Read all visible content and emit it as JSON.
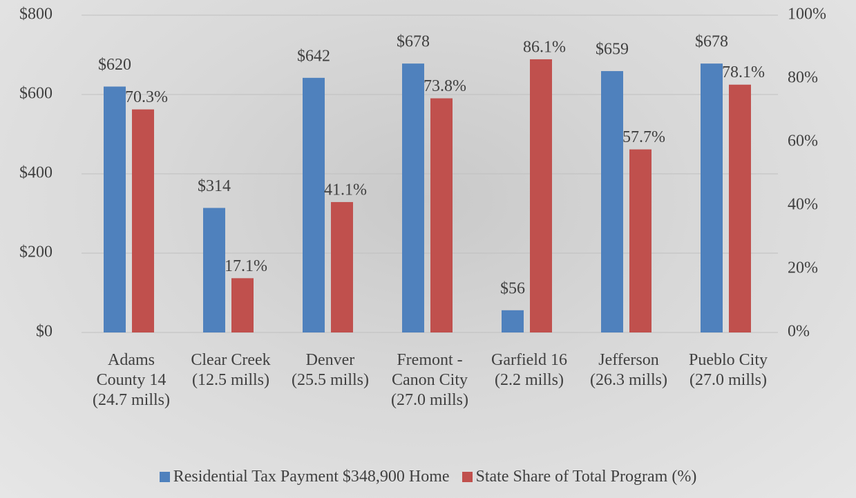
{
  "chart_data": {
    "type": "bar",
    "categories": [
      "Adams County 14 (24.7 mills)",
      "Clear Creek (12.5 mills)",
      "Denver (25.5 mills)",
      "Fremont - Canon City (27.0 mills)",
      "Garfield 16 (2.2 mills)",
      "Jefferson (26.3 mills)",
      "Pueblo City (27.0 mills)"
    ],
    "series": [
      {
        "name": "Residential Tax Payment $348,900 Home",
        "color": "#4f81bd",
        "values": [
          620,
          314,
          642,
          678,
          56,
          659,
          678
        ],
        "value_labels": [
          "$620",
          "$314",
          "$642",
          "$678",
          "$56",
          "$659",
          "$678"
        ]
      },
      {
        "name": "State Share of Total Program (%)",
        "color": "#c0504d",
        "axis": "y2",
        "values": [
          70.3,
          17.1,
          41.1,
          73.8,
          86.1,
          57.7,
          78.1
        ],
        "value_labels": [
          "70.3%",
          "17.1%",
          "41.1%",
          "73.8%",
          "86.1%",
          "57.7%",
          "78.1%"
        ]
      }
    ],
    "ylim": [
      0,
      800
    ],
    "yticks": [
      {
        "value": 0,
        "label": "$0"
      },
      {
        "value": 200,
        "label": "$200"
      },
      {
        "value": 400,
        "label": "$400"
      },
      {
        "value": 600,
        "label": "$600"
      },
      {
        "value": 800,
        "label": "$800"
      }
    ],
    "y2lim": [
      0,
      100
    ],
    "y2ticks": [
      {
        "value": 0,
        "label": "0%"
      },
      {
        "value": 20,
        "label": "20%"
      },
      {
        "value": 40,
        "label": "40%"
      },
      {
        "value": 60,
        "label": "60%"
      },
      {
        "value": 80,
        "label": "80%"
      },
      {
        "value": 100,
        "label": "100%"
      }
    ],
    "grid": true,
    "legend": "bottom"
  }
}
